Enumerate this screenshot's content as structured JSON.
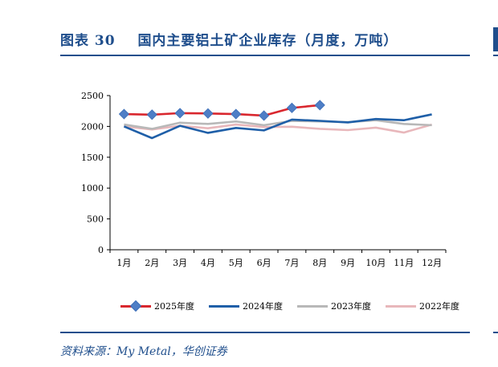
{
  "header": {
    "figure_label": "图表",
    "figure_number": "30",
    "title": "国内主要铝土矿企业库存（月度，万吨）"
  },
  "footer": {
    "source": "资料来源：My Metal，华创证券"
  },
  "colors": {
    "accent": "#1f4e8c",
    "series_2025": "#d9272e",
    "marker_2025": "#4e7ec6",
    "series_2024": "#1f5fa8",
    "series_2023": "#b8b8b8",
    "series_2022": "#e8b7bb"
  },
  "chart_data": {
    "type": "line",
    "categories": [
      "1月",
      "2月",
      "3月",
      "4月",
      "5月",
      "6月",
      "7月",
      "8月",
      "9月",
      "10月",
      "11月",
      "12月"
    ],
    "ylim": [
      0,
      2500
    ],
    "yticks": [
      0,
      500,
      1000,
      1500,
      2000,
      2500
    ],
    "grid": false,
    "legend_position": "bottom",
    "series": [
      {
        "name": "2025年度",
        "color": "#d9272e",
        "marker": "diamond",
        "values": [
          2200,
          2190,
          2215,
          2210,
          2200,
          2175,
          2300,
          2345,
          null,
          null,
          null,
          null
        ]
      },
      {
        "name": "2024年度",
        "color": "#1f5fa8",
        "marker": "none",
        "values": [
          2000,
          1810,
          2010,
          1895,
          1975,
          1935,
          2110,
          2090,
          2065,
          2120,
          2100,
          2195
        ]
      },
      {
        "name": "2023年度",
        "color": "#b8b8b8",
        "marker": "none",
        "values": [
          2030,
          1960,
          2060,
          2040,
          2080,
          2020,
          2090,
          2080,
          2070,
          2100,
          2040,
          2020
        ]
      },
      {
        "name": "2022年度",
        "color": "#e8b7bb",
        "marker": "none",
        "values": [
          2000,
          1950,
          2010,
          1970,
          2030,
          1990,
          1995,
          1960,
          1940,
          1980,
          1900,
          2030
        ]
      }
    ]
  }
}
